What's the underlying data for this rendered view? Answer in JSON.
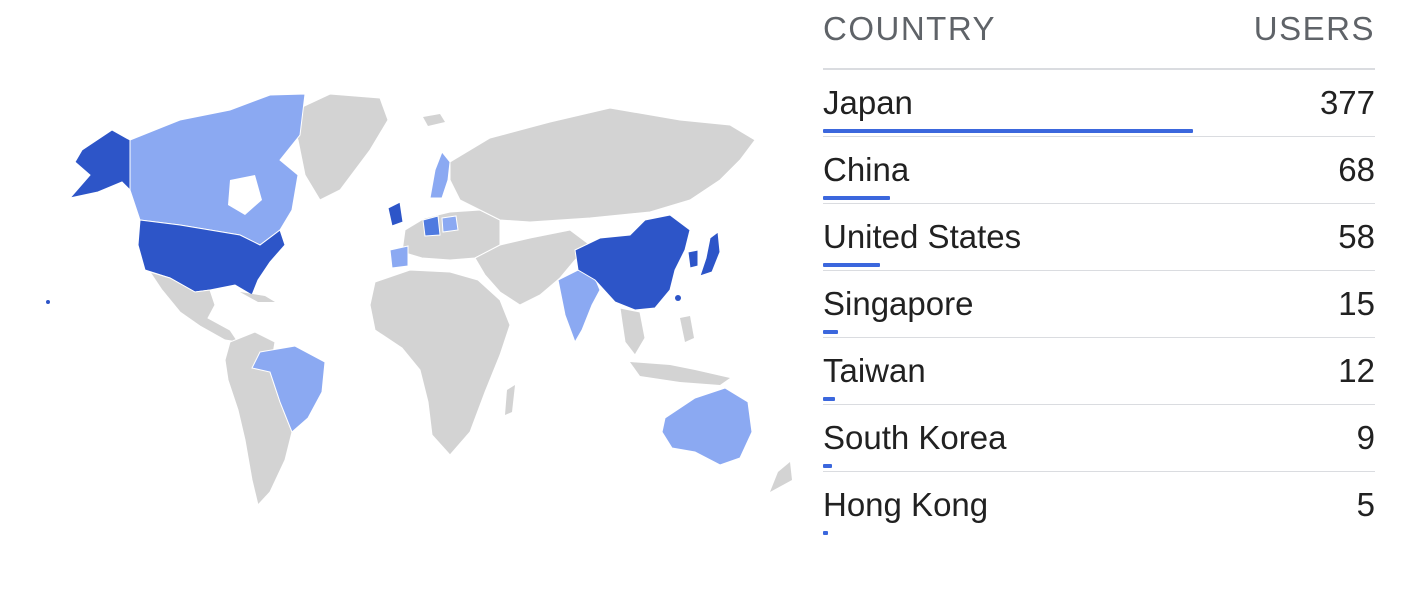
{
  "colors": {
    "bar": "#3b67dd",
    "dark": "#2d55c8",
    "medium": "#4f7ae0",
    "light": "#8ba9f2",
    "land": "#d3d3d3",
    "border": "#ffffff"
  },
  "table": {
    "country_header": "COUNTRY",
    "users_header": "USERS",
    "rows": [
      {
        "country": "Japan",
        "users": "377",
        "value": 377
      },
      {
        "country": "China",
        "users": "68",
        "value": 68
      },
      {
        "country": "United States",
        "users": "58",
        "value": 58
      },
      {
        "country": "Singapore",
        "users": "15",
        "value": 15
      },
      {
        "country": "Taiwan",
        "users": "12",
        "value": 12
      },
      {
        "country": "South Korea",
        "users": "9",
        "value": 9
      },
      {
        "country": "Hong Kong",
        "users": "5",
        "value": 5
      }
    ]
  }
}
